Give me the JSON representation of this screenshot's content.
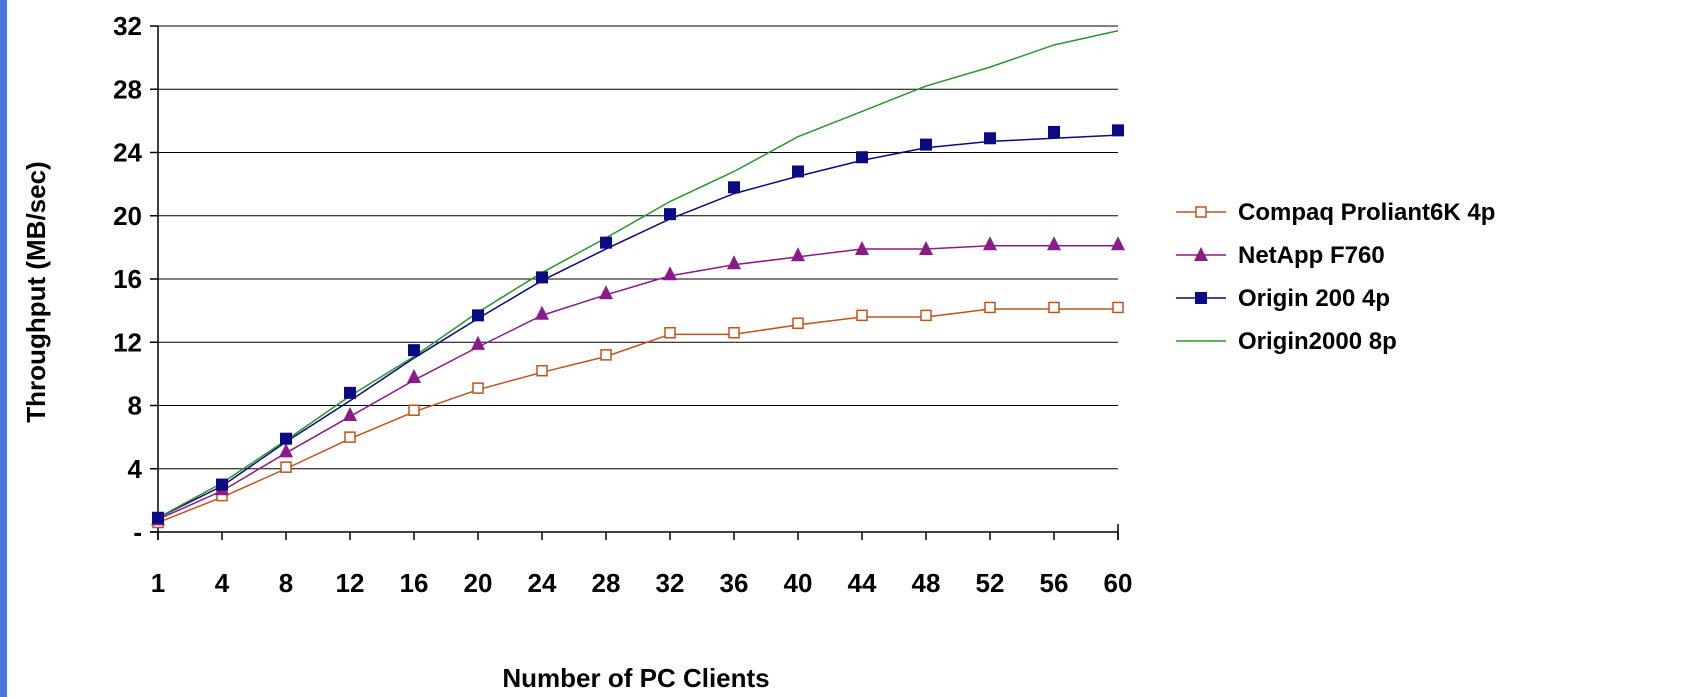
{
  "colors": {
    "stripe": "#4a74d9",
    "background": "#ffffff",
    "grid": "#000000"
  },
  "chart_data": {
    "type": "line",
    "title": "",
    "xlabel": "Number of PC Clients",
    "ylabel": "Throughput (MB/sec)",
    "categories": [
      "1",
      "4",
      "8",
      "12",
      "16",
      "20",
      "24",
      "28",
      "32",
      "36",
      "40",
      "44",
      "48",
      "52",
      "56",
      "60"
    ],
    "ylim": [
      0,
      32
    ],
    "yticks": [
      0,
      4,
      8,
      12,
      16,
      20,
      24,
      28,
      32
    ],
    "ytick_labels": [
      "-",
      "4",
      "8",
      "12",
      "16",
      "20",
      "24",
      "28",
      "32"
    ],
    "grid": true,
    "legend": "right",
    "series": [
      {
        "name": "Compaq Proliant6K 4p",
        "color": "#c0531c",
        "marker": "hollow-square",
        "line": [
          0.6,
          2.2,
          4.0,
          5.9,
          7.6,
          9.0,
          10.1,
          11.1,
          12.5,
          12.5,
          13.1,
          13.6,
          13.6,
          14.1,
          14.1,
          14.1
        ],
        "points": [
          0.6,
          2.3,
          4.1,
          6.0,
          7.7,
          9.1,
          10.2,
          11.2,
          12.6,
          12.6,
          13.2,
          13.7,
          13.7,
          14.2,
          14.2,
          14.2
        ]
      },
      {
        "name": "NetApp F760",
        "color": "#8b1a8b",
        "marker": "triangle",
        "line": [
          0.8,
          2.6,
          5.0,
          7.3,
          9.6,
          11.7,
          13.7,
          15.0,
          16.2,
          16.9,
          17.4,
          17.9,
          17.9,
          18.1,
          18.1,
          18.1
        ],
        "points": [
          0.8,
          2.7,
          5.1,
          7.4,
          9.8,
          11.9,
          13.8,
          15.1,
          16.3,
          17.0,
          17.5,
          17.9,
          17.9,
          18.2,
          18.2,
          18.2
        ]
      },
      {
        "name": "Origin 200 4p",
        "color": "#0a0a82",
        "marker": "filled-square",
        "line": [
          0.9,
          2.9,
          5.7,
          8.3,
          11.0,
          13.5,
          15.9,
          17.9,
          19.8,
          21.4,
          22.5,
          23.5,
          24.3,
          24.7,
          24.9,
          25.1
        ],
        "points": [
          0.9,
          3.0,
          5.9,
          8.8,
          11.5,
          13.7,
          16.1,
          18.3,
          20.1,
          21.8,
          22.8,
          23.7,
          24.5,
          24.9,
          25.3,
          25.4
        ]
      },
      {
        "name": "Origin2000 8p",
        "color": "#2a962a",
        "marker": "none",
        "line": [
          0.9,
          3.1,
          5.8,
          8.6,
          11.1,
          13.9,
          16.4,
          18.6,
          20.9,
          22.8,
          25.0,
          26.6,
          28.2,
          29.4,
          30.8,
          31.7
        ]
      }
    ]
  }
}
